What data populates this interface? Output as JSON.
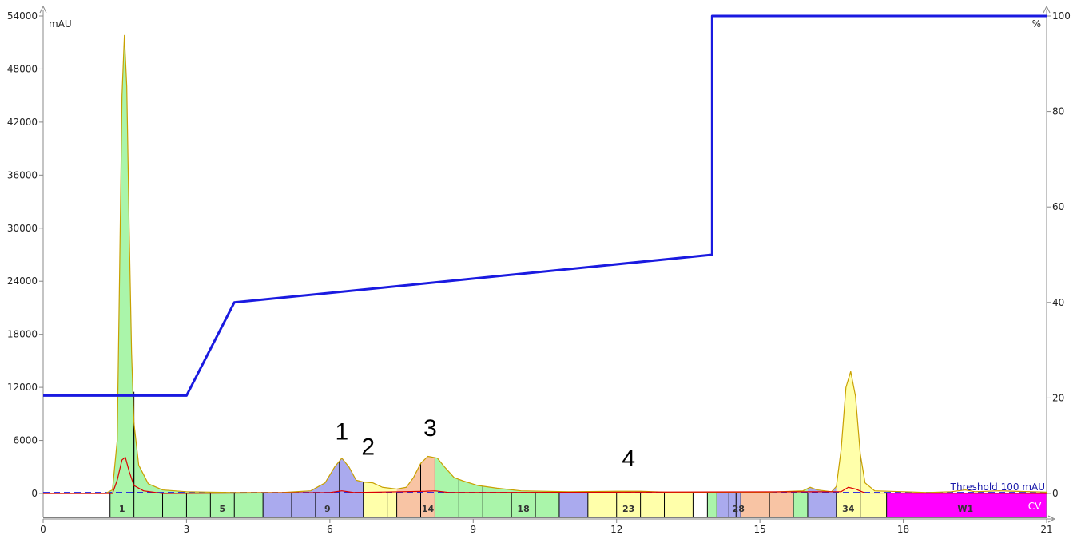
{
  "chart_data": {
    "type": "line",
    "title": "",
    "xlabel": "",
    "xlim": [
      0,
      21
    ],
    "x_ticks": [
      0,
      3,
      6,
      9,
      12,
      15,
      18,
      21
    ],
    "y_left": {
      "label": "mAU",
      "lim": [
        0,
        54000
      ],
      "ticks": [
        0,
        6000,
        12000,
        18000,
        24000,
        30000,
        36000,
        42000,
        48000,
        54000
      ]
    },
    "y_right": {
      "label": "%",
      "lim": [
        0,
        100
      ],
      "ticks": [
        0,
        20,
        40,
        60,
        80,
        100
      ]
    },
    "series": [
      {
        "axis": "left",
        "color": "#c8a000",
        "points": [
          [
            0,
            0
          ],
          [
            1.3,
            0
          ],
          [
            1.45,
            400
          ],
          [
            1.55,
            6000
          ],
          [
            1.6,
            25000
          ],
          [
            1.65,
            45000
          ],
          [
            1.7,
            51800
          ],
          [
            1.75,
            46000
          ],
          [
            1.8,
            30000
          ],
          [
            1.85,
            16000
          ],
          [
            1.9,
            8000
          ],
          [
            2.0,
            3200
          ],
          [
            2.2,
            1100
          ],
          [
            2.5,
            400
          ],
          [
            3.0,
            200
          ],
          [
            4.0,
            100
          ],
          [
            5.0,
            100
          ],
          [
            5.6,
            300
          ],
          [
            5.9,
            1200
          ],
          [
            6.1,
            3000
          ],
          [
            6.25,
            4000
          ],
          [
            6.4,
            3000
          ],
          [
            6.55,
            1500
          ],
          [
            6.7,
            1300
          ],
          [
            6.9,
            1200
          ],
          [
            7.1,
            700
          ],
          [
            7.4,
            500
          ],
          [
            7.6,
            700
          ],
          [
            7.75,
            1800
          ],
          [
            7.9,
            3400
          ],
          [
            8.05,
            4200
          ],
          [
            8.25,
            4000
          ],
          [
            8.4,
            3000
          ],
          [
            8.6,
            1800
          ],
          [
            8.8,
            1400
          ],
          [
            9.1,
            900
          ],
          [
            9.5,
            600
          ],
          [
            10.0,
            300
          ],
          [
            11.0,
            200
          ],
          [
            12.0,
            250
          ],
          [
            12.5,
            250
          ],
          [
            13.0,
            150
          ],
          [
            14.0,
            100
          ],
          [
            15.0,
            100
          ],
          [
            15.9,
            300
          ],
          [
            16.05,
            700
          ],
          [
            16.2,
            400
          ],
          [
            16.5,
            200
          ],
          [
            16.6,
            800
          ],
          [
            16.7,
            5000
          ],
          [
            16.8,
            12000
          ],
          [
            16.9,
            13800
          ],
          [
            17.0,
            11000
          ],
          [
            17.1,
            4500
          ],
          [
            17.2,
            1200
          ],
          [
            17.4,
            300
          ],
          [
            18.0,
            200
          ],
          [
            18.5,
            100
          ],
          [
            19.0,
            200
          ],
          [
            19.3,
            400
          ],
          [
            19.5,
            200
          ],
          [
            20.0,
            300
          ],
          [
            21.0,
            150
          ]
        ]
      },
      {
        "axis": "left",
        "color": "#dd0000",
        "points": [
          [
            0,
            0
          ],
          [
            1.45,
            0
          ],
          [
            1.55,
            1500
          ],
          [
            1.65,
            3800
          ],
          [
            1.72,
            4100
          ],
          [
            1.8,
            2500
          ],
          [
            1.9,
            900
          ],
          [
            2.1,
            300
          ],
          [
            2.5,
            0
          ],
          [
            6.0,
            100
          ],
          [
            6.25,
            300
          ],
          [
            6.5,
            100
          ],
          [
            8.0,
            250
          ],
          [
            8.2,
            300
          ],
          [
            8.5,
            100
          ],
          [
            16.7,
            200
          ],
          [
            16.85,
            700
          ],
          [
            17.0,
            500
          ],
          [
            17.2,
            50
          ],
          [
            21.0,
            0
          ]
        ]
      },
      {
        "axis": "right",
        "color": "#1a1ae0",
        "points": [
          [
            0,
            20.5
          ],
          [
            3.0,
            20.5
          ],
          [
            4.0,
            40.0
          ],
          [
            14.0,
            50.0
          ],
          [
            14.0,
            100.0
          ],
          [
            21.0,
            100.0
          ]
        ]
      }
    ],
    "threshold": {
      "value": 100,
      "label": "Threshold 100 mAU",
      "color": "#1a1ae0"
    },
    "fractions": [
      {
        "start": 0.0,
        "end": 1.4,
        "color": "#ffffff",
        "label": ""
      },
      {
        "start": 1.4,
        "end": 4.6,
        "color": "#aaf5aa",
        "label": ""
      },
      {
        "start": 4.6,
        "end": 6.7,
        "color": "#aaaaee",
        "label": ""
      },
      {
        "start": 6.7,
        "end": 7.4,
        "color": "#ffffaa",
        "label": ""
      },
      {
        "start": 7.4,
        "end": 8.2,
        "color": "#f8c4a4",
        "label": ""
      },
      {
        "start": 8.2,
        "end": 10.8,
        "color": "#aaf5aa",
        "label": ""
      },
      {
        "start": 10.8,
        "end": 11.4,
        "color": "#aaaaee",
        "label": ""
      },
      {
        "start": 11.4,
        "end": 13.6,
        "color": "#ffffaa",
        "label": ""
      },
      {
        "start": 13.6,
        "end": 13.9,
        "color": "#ffffff",
        "label": ""
      },
      {
        "start": 13.9,
        "end": 14.1,
        "color": "#aaf5aa",
        "label": ""
      },
      {
        "start": 14.1,
        "end": 14.6,
        "color": "#aaaaee",
        "label": ""
      },
      {
        "start": 14.6,
        "end": 15.7,
        "color": "#f8c4a4",
        "label": ""
      },
      {
        "start": 15.7,
        "end": 16.0,
        "color": "#aaf5aa",
        "label": ""
      },
      {
        "start": 16.0,
        "end": 16.6,
        "color": "#aaaaee",
        "label": ""
      },
      {
        "start": 16.6,
        "end": 17.65,
        "color": "#ffffaa",
        "label": ""
      },
      {
        "start": 17.65,
        "end": 21.0,
        "color": "#ff00ff",
        "label": ""
      }
    ],
    "fraction_dividers": [
      1.4,
      1.9,
      2.5,
      3.0,
      3.5,
      4.0,
      4.6,
      5.2,
      5.7,
      6.2,
      6.7,
      7.2,
      7.4,
      7.9,
      8.2,
      8.7,
      9.2,
      9.8,
      10.3,
      10.8,
      11.4,
      12.0,
      12.5,
      13.0,
      13.6,
      13.9,
      14.1,
      14.35,
      14.5,
      14.6,
      15.2,
      15.7,
      16.0,
      16.6,
      17.1,
      17.65,
      21.0
    ],
    "fraction_labels": [
      {
        "x": 1.65,
        "text": "1"
      },
      {
        "x": 3.75,
        "text": "5"
      },
      {
        "x": 5.95,
        "text": "9"
      },
      {
        "x": 8.05,
        "text": "14"
      },
      {
        "x": 10.05,
        "text": "18"
      },
      {
        "x": 12.25,
        "text": "23"
      },
      {
        "x": 14.55,
        "text": "28"
      },
      {
        "x": 16.85,
        "text": "34"
      },
      {
        "x": 19.3,
        "text": "W1"
      }
    ],
    "cv_label": "CV",
    "annotations": [
      {
        "x": 6.25,
        "y_pct": 11.3,
        "text": "1"
      },
      {
        "x": 6.8,
        "y_pct": 8.1,
        "text": "2"
      },
      {
        "x": 8.1,
        "y_pct": 12.0,
        "text": "3"
      },
      {
        "x": 12.25,
        "y_pct": 5.7,
        "text": "4"
      }
    ]
  }
}
